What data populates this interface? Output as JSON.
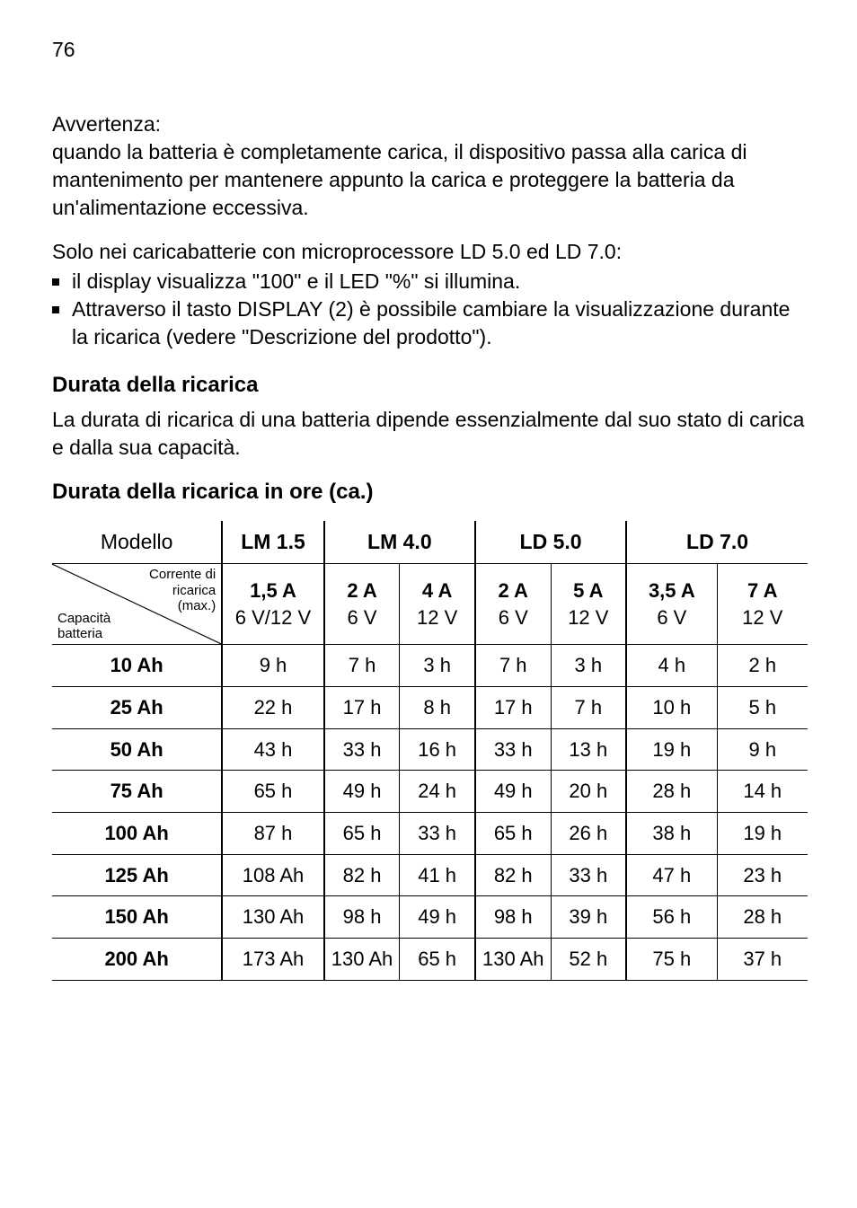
{
  "page_number": "76",
  "warning_label": "Avvertenza:",
  "warning_text": "quando la batteria è completamente carica, il dispositivo passa alla carica di mantenimento per mantenere appunto la carica e proteggere la batteria da un'alimentazione eccessiva.",
  "solo_intro": "Solo nei caricabatterie con microprocessore LD 5.0 ed LD 7.0:",
  "bullet1": "il display visualizza \"100\" e il LED \"%\" si illumina.",
  "bullet2": "Attraverso il tasto DISPLAY (2) è possibile cambiare la visualizzazione durante la ricarica (vedere \"Descrizione del prodotto\").",
  "durata_heading": "Durata della ricarica",
  "durata_text": "La durata di ricarica di una batteria dipende essenzialmente dal suo stato di carica e dalla sua capacità.",
  "table_heading": "Durata della ricarica in ore (ca.)",
  "table": {
    "model_label": "Modello",
    "diag_right_1": "Corrente di",
    "diag_right_2": "ricarica",
    "diag_right_3": "(max.)",
    "diag_left_1": "Capacità",
    "diag_left_2": "batteria",
    "models": {
      "lm15": "LM 1.5",
      "lm40": "LM 4.0",
      "ld50": "LD 5.0",
      "ld70": "LD 7.0"
    },
    "currents": {
      "c1_a": "1,5 A",
      "c1_v": "6 V/12 V",
      "c2_a": "2 A",
      "c2_v": "6 V",
      "c3_a": "4 A",
      "c3_v": "12 V",
      "c4_a": "2 A",
      "c4_v": "6 V",
      "c5_a": "5 A",
      "c5_v": "12 V",
      "c6_a": "3,5 A",
      "c6_v": "6 V",
      "c7_a": "7 A",
      "c7_v": "12 V"
    },
    "rows": [
      {
        "cap": "10 Ah",
        "v": [
          "9 h",
          "7 h",
          "3 h",
          "7 h",
          "3 h",
          "4 h",
          "2 h"
        ]
      },
      {
        "cap": "25 Ah",
        "v": [
          "22 h",
          "17 h",
          "8 h",
          "17 h",
          "7 h",
          "10 h",
          "5 h"
        ]
      },
      {
        "cap": "50 Ah",
        "v": [
          "43 h",
          "33 h",
          "16 h",
          "33 h",
          "13 h",
          "19 h",
          "9 h"
        ]
      },
      {
        "cap": "75 Ah",
        "v": [
          "65 h",
          "49 h",
          "24 h",
          "49 h",
          "20 h",
          "28 h",
          "14 h"
        ]
      },
      {
        "cap": "100 Ah",
        "v": [
          "87 h",
          "65 h",
          "33 h",
          "65 h",
          "26 h",
          "38 h",
          "19 h"
        ]
      },
      {
        "cap": "125 Ah",
        "v": [
          "108 Ah",
          "82 h",
          "41 h",
          "82 h",
          "33 h",
          "47 h",
          "23 h"
        ]
      },
      {
        "cap": "150 Ah",
        "v": [
          "130 Ah",
          "98 h",
          "49 h",
          "98 h",
          "39 h",
          "56 h",
          "28 h"
        ]
      },
      {
        "cap": "200 Ah",
        "v": [
          "173 Ah",
          "130 Ah",
          "65 h",
          "130 Ah",
          "52 h",
          "75 h",
          "37 h"
        ]
      }
    ]
  }
}
